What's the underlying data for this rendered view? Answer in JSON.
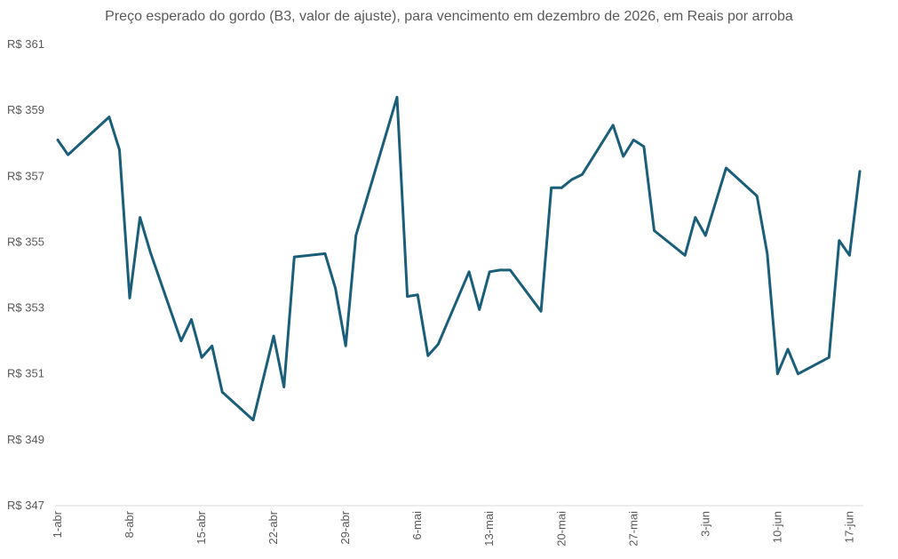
{
  "chart_data": {
    "type": "line",
    "title": "Preço esperado do gordo (B3, valor de ajuste), para vencimento em dezembro de 2026, em Reais por arroba",
    "xlabel": "",
    "ylabel": "",
    "ylim": [
      347,
      361
    ],
    "ytick_step": 2,
    "ytick_prefix": "R$ ",
    "grid": false,
    "line_color": "#1a5e7a",
    "x_ticks": [
      {
        "day": 1,
        "label": "1-abr"
      },
      {
        "day": 8,
        "label": "8-abr"
      },
      {
        "day": 15,
        "label": "15-abr"
      },
      {
        "day": 22,
        "label": "22-abr"
      },
      {
        "day": 29,
        "label": "29-abr"
      },
      {
        "day": 36,
        "label": "6-mai"
      },
      {
        "day": 43,
        "label": "13-mai"
      },
      {
        "day": 50,
        "label": "20-mai"
      },
      {
        "day": 57,
        "label": "27-mai"
      },
      {
        "day": 64,
        "label": "3-jun"
      },
      {
        "day": 71,
        "label": "10-jun"
      },
      {
        "day": 78,
        "label": "17-jun"
      }
    ],
    "series": [
      {
        "name": "",
        "points": [
          [
            1,
            358.1
          ],
          [
            2,
            357.65
          ],
          [
            6,
            358.8
          ],
          [
            7,
            357.8
          ],
          [
            8,
            353.3
          ],
          [
            9,
            355.75
          ],
          [
            10,
            354.7
          ],
          [
            13,
            352.0
          ],
          [
            14,
            352.65
          ],
          [
            15,
            351.5
          ],
          [
            16,
            351.85
          ],
          [
            17,
            350.45
          ],
          [
            20,
            349.6
          ],
          [
            22,
            352.15
          ],
          [
            23,
            350.6
          ],
          [
            24,
            354.55
          ],
          [
            27,
            354.65
          ],
          [
            28,
            353.6
          ],
          [
            29,
            351.85
          ],
          [
            30,
            355.2
          ],
          [
            34,
            359.4
          ],
          [
            35,
            353.35
          ],
          [
            36,
            353.4
          ],
          [
            37,
            351.55
          ],
          [
            38,
            351.9
          ],
          [
            41,
            354.1
          ],
          [
            42,
            352.95
          ],
          [
            43,
            354.1
          ],
          [
            44,
            354.15
          ],
          [
            45,
            354.15
          ],
          [
            48,
            352.9
          ],
          [
            49,
            356.65
          ],
          [
            50,
            356.65
          ],
          [
            51,
            356.9
          ],
          [
            52,
            357.05
          ],
          [
            55,
            358.55
          ],
          [
            56,
            357.6
          ],
          [
            57,
            358.1
          ],
          [
            58,
            357.9
          ],
          [
            59,
            355.35
          ],
          [
            62,
            354.6
          ],
          [
            63,
            355.75
          ],
          [
            64,
            355.2
          ],
          [
            66,
            357.25
          ],
          [
            69,
            356.4
          ],
          [
            70,
            354.65
          ],
          [
            71,
            351.0
          ],
          [
            72,
            351.75
          ],
          [
            73,
            351.0
          ],
          [
            76,
            351.5
          ],
          [
            77,
            355.05
          ],
          [
            78,
            354.6
          ],
          [
            79,
            357.15
          ]
        ]
      }
    ]
  }
}
